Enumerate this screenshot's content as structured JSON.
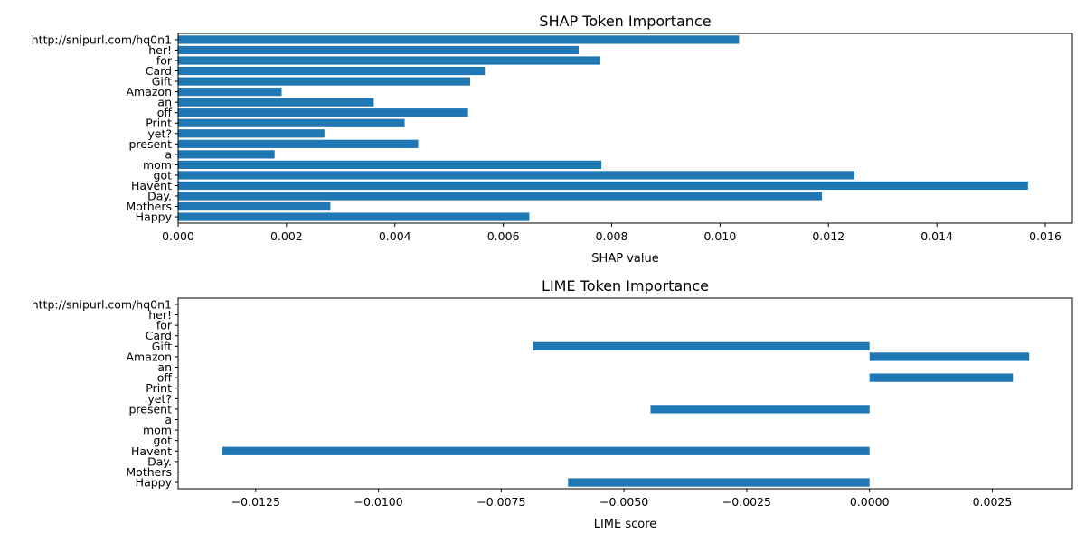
{
  "chart_data": [
    {
      "type": "bar",
      "orientation": "horizontal",
      "title": "SHAP Token Importance",
      "xlabel": "SHAP value",
      "ylabel": "",
      "xlim": [
        0,
        0.0165
      ],
      "xticks": [
        0.0,
        0.002,
        0.004,
        0.006,
        0.008,
        0.01,
        0.012,
        0.014,
        0.016
      ],
      "xtick_labels": [
        "0.000",
        "0.002",
        "0.004",
        "0.006",
        "0.008",
        "0.010",
        "0.012",
        "0.014",
        "0.016"
      ],
      "grid": false,
      "categories": [
        "Happy",
        "Mothers",
        "Day.",
        "Havent",
        "got",
        "mom",
        "a",
        "present",
        "yet?",
        "Print",
        "off",
        "an",
        "Amazon",
        "Gift",
        "Card",
        "for",
        "her!",
        "http://snipurl.com/hq0n1"
      ],
      "values": [
        0.00648,
        0.00281,
        0.01188,
        0.01568,
        0.01248,
        0.00781,
        0.00178,
        0.00443,
        0.0027,
        0.00418,
        0.00535,
        0.00361,
        0.00191,
        0.00539,
        0.00566,
        0.00779,
        0.00739,
        0.01035
      ]
    },
    {
      "type": "bar",
      "orientation": "horizontal",
      "title": "LIME Token Importance",
      "xlabel": "LIME score",
      "ylabel": "",
      "xlim": [
        -0.01408,
        0.00413
      ],
      "xticks": [
        -0.0125,
        -0.01,
        -0.0075,
        -0.005,
        -0.0025,
        0.0,
        0.0025
      ],
      "xtick_labels": [
        "−0.0125",
        "−0.0100",
        "−0.0075",
        "−0.0050",
        "−0.0025",
        "0.0000",
        "0.0025"
      ],
      "grid": false,
      "categories": [
        "Happy",
        "Mothers",
        "Day.",
        "Havent",
        "got",
        "mom",
        "a",
        "present",
        "yet?",
        "Print",
        "off",
        "an",
        "Amazon",
        "Gift",
        "Card",
        "for",
        "her!",
        "http://snipurl.com/hq0n1"
      ],
      "values": [
        -0.00614,
        0,
        0,
        -0.01318,
        0,
        0,
        0,
        -0.00446,
        0,
        0,
        0.00292,
        0,
        0.00325,
        -0.00686,
        0,
        0,
        0,
        0
      ]
    }
  ],
  "colors": {
    "bar": "#1f77b4"
  }
}
